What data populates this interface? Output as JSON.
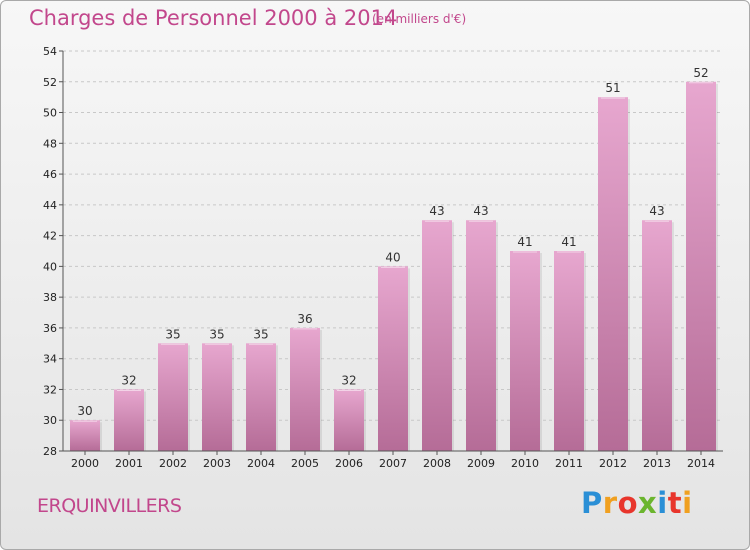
{
  "title": "Charges de Personnel 2000 à 2014",
  "subtitle": "(en milliers d'€)",
  "commune": "ERQUINVILLERS",
  "logo": {
    "letters": [
      "P",
      "r",
      "o",
      "x",
      "i",
      "t",
      "i"
    ],
    "colors": [
      "#2a8fd6",
      "#f0a020",
      "#e8352c",
      "#6bb52e",
      "#2a8fd6",
      "#e8352c",
      "#f0a020"
    ]
  },
  "colors": {
    "bar_top": "#e7a7cf",
    "bar_bottom": "#b56c97",
    "title": "#c2478c",
    "grid": "#c8c8c8"
  },
  "chart_data": {
    "type": "bar",
    "title": "Charges de Personnel 2000 à 2014",
    "subtitle": "(en milliers d'€)",
    "categories": [
      "2000",
      "2001",
      "2002",
      "2003",
      "2004",
      "2005",
      "2006",
      "2007",
      "2008",
      "2009",
      "2010",
      "2011",
      "2012",
      "2013",
      "2014"
    ],
    "values": [
      30,
      32,
      35,
      35,
      35,
      36,
      32,
      40,
      43,
      43,
      41,
      41,
      51,
      43,
      52
    ],
    "ylim": [
      28,
      54
    ],
    "yticks": [
      28,
      30,
      32,
      34,
      36,
      38,
      40,
      42,
      44,
      46,
      48,
      50,
      52,
      54
    ],
    "grid": true,
    "xlabel": "",
    "ylabel": ""
  }
}
